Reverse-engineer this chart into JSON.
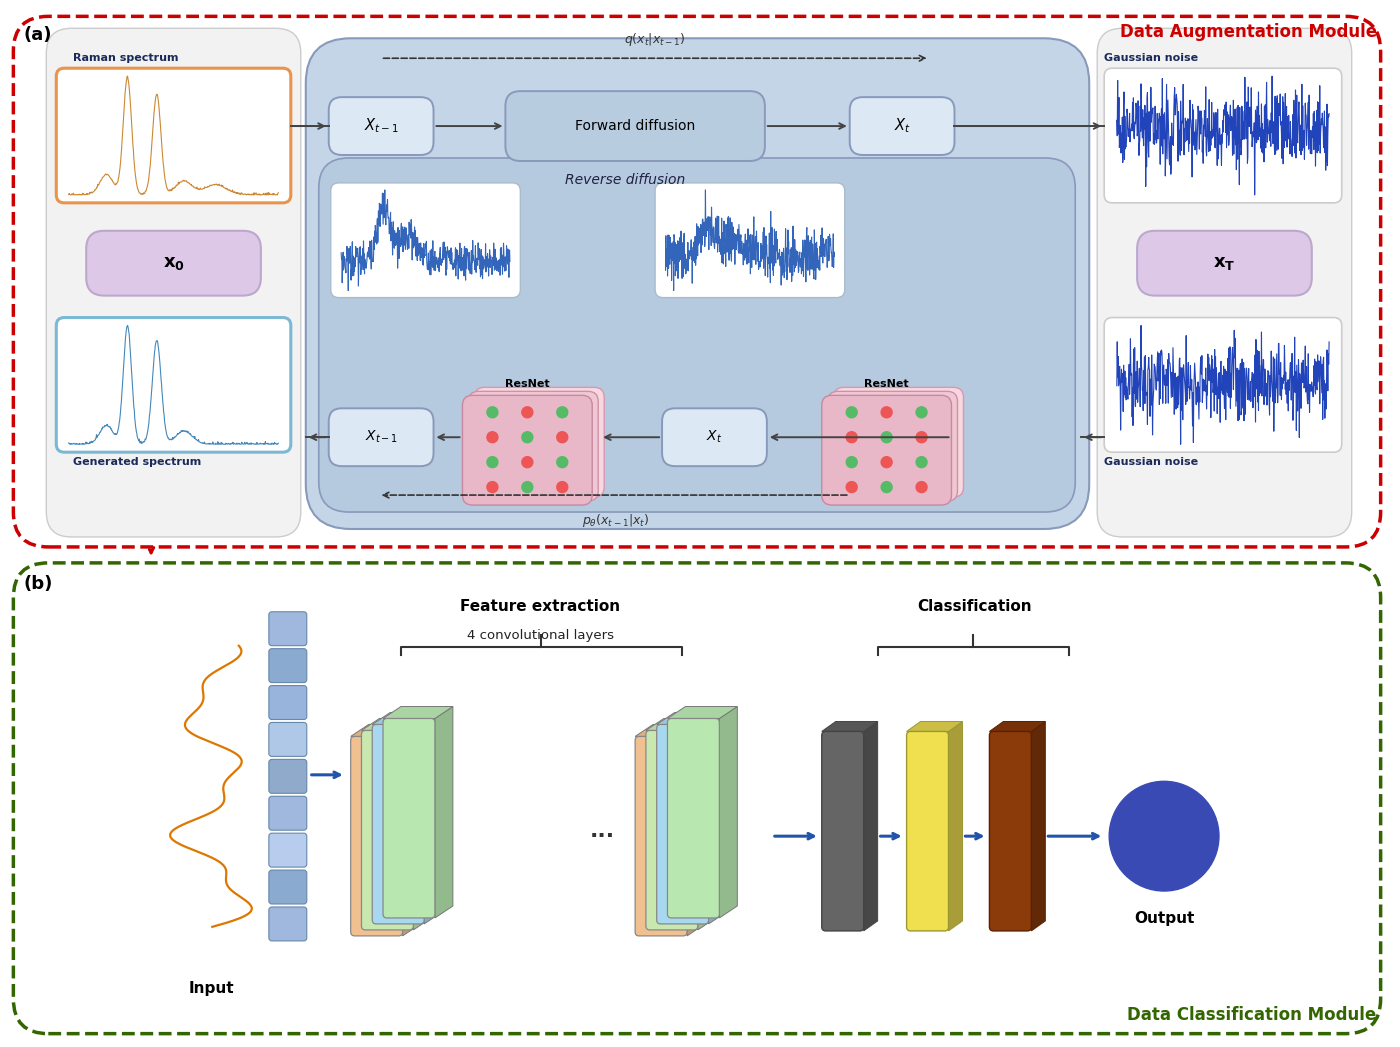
{
  "title_a": "Data Augmentation Module",
  "title_b": "Data Classification Module",
  "label_a": "(a)",
  "label_b": "(b)",
  "raman_spectrum_label": "Raman spectrum",
  "generated_spectrum_label": "Generated spectrum",
  "gaussian_noise_label_top": "Gaussian noise",
  "gaussian_noise_label_bottom": "Gaussian noise",
  "forward_label": "Forward diffusion",
  "reverse_label": "Reverse diffusion",
  "q_label": "q(x$_t$|x$_{t-1}$)",
  "p_label": "p$_\\theta$(x$_{t-1}$|x$_t$)",
  "resnet_label": "ResNet",
  "feature_label": "Feature extraction",
  "conv_label": "4 convolutional layers",
  "classification_label": "Classification",
  "input_label": "Input",
  "output_label": "Output",
  "aug_border_color": "#cc0000",
  "cls_border_color": "#336600",
  "raman_border": "#e8944a",
  "generated_border": "#7ab8d4",
  "arrow_color": "#2255aa",
  "dark_arrow": "#444444"
}
